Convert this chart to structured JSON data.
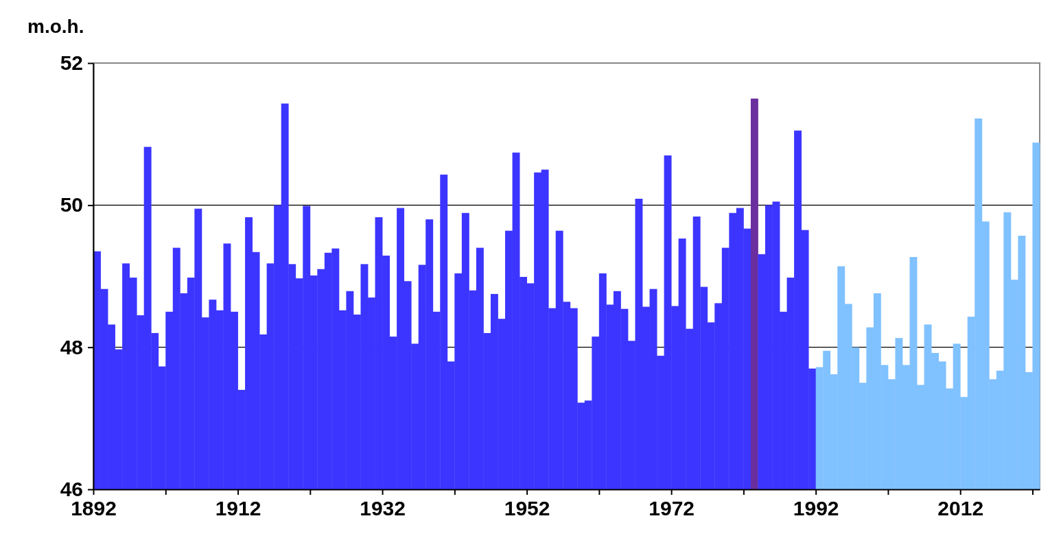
{
  "chart_data": {
    "type": "bar",
    "ylabel": "m.o.h.",
    "x": [
      1892,
      1893,
      1894,
      1895,
      1896,
      1897,
      1898,
      1899,
      1900,
      1901,
      1902,
      1903,
      1904,
      1905,
      1906,
      1907,
      1908,
      1909,
      1910,
      1911,
      1912,
      1913,
      1914,
      1915,
      1916,
      1917,
      1918,
      1919,
      1920,
      1921,
      1922,
      1923,
      1924,
      1925,
      1926,
      1927,
      1928,
      1929,
      1930,
      1931,
      1932,
      1933,
      1934,
      1935,
      1936,
      1937,
      1938,
      1939,
      1940,
      1941,
      1942,
      1943,
      1944,
      1945,
      1946,
      1947,
      1948,
      1949,
      1950,
      1951,
      1952,
      1953,
      1954,
      1955,
      1956,
      1957,
      1958,
      1959,
      1960,
      1961,
      1962,
      1963,
      1964,
      1965,
      1966,
      1967,
      1968,
      1969,
      1970,
      1971,
      1972,
      1973,
      1974,
      1975,
      1976,
      1977,
      1978,
      1979,
      1980,
      1981,
      1982,
      1983,
      1984,
      1985,
      1986,
      1987,
      1988,
      1989,
      1990,
      1991,
      1992,
      1993,
      1994,
      1995,
      1996,
      1997,
      1998,
      1999,
      2000,
      2001,
      2002,
      2003,
      2004,
      2005,
      2006,
      2007,
      2008,
      2009,
      2010,
      2011,
      2012,
      2013,
      2014,
      2015,
      2016,
      2017,
      2018,
      2019,
      2020,
      2021,
      2022
    ],
    "values": [
      49.35,
      48.82,
      48.32,
      47.97,
      49.18,
      48.98,
      48.45,
      50.82,
      48.2,
      47.73,
      48.5,
      49.4,
      48.76,
      48.98,
      49.95,
      48.42,
      48.67,
      48.52,
      49.46,
      48.5,
      47.4,
      49.83,
      49.34,
      48.18,
      49.18,
      50.0,
      51.43,
      49.17,
      48.97,
      49.99,
      49.01,
      49.1,
      49.33,
      49.39,
      48.52,
      48.79,
      48.46,
      49.17,
      48.7,
      49.83,
      49.29,
      48.15,
      49.96,
      48.93,
      48.05,
      49.16,
      49.8,
      48.5,
      50.43,
      47.8,
      49.04,
      49.89,
      48.8,
      49.4,
      48.2,
      48.75,
      48.4,
      49.64,
      50.74,
      48.99,
      48.9,
      50.46,
      50.5,
      48.55,
      49.64,
      48.64,
      48.55,
      47.22,
      47.25,
      48.15,
      49.04,
      48.6,
      48.79,
      48.54,
      48.09,
      50.09,
      48.57,
      48.82,
      47.88,
      50.7,
      48.58,
      49.53,
      48.26,
      49.84,
      48.85,
      48.35,
      48.62,
      49.4,
      49.89,
      49.96,
      49.67,
      51.5,
      49.31,
      50.0,
      50.05,
      48.5,
      48.98,
      51.05,
      49.65,
      47.7,
      47.72,
      47.95,
      47.62,
      49.14,
      48.61,
      48.0,
      47.5,
      48.28,
      48.76,
      47.75,
      47.55,
      48.13,
      47.75,
      49.27,
      47.47,
      48.32,
      47.92,
      47.8,
      47.42,
      48.05,
      47.3,
      48.43,
      51.22,
      49.77,
      47.55,
      47.67,
      49.9,
      48.95,
      49.57,
      47.65,
      50.88
    ],
    "colors": [
      "#3c35ff",
      "#3c35ff",
      "#3c35ff",
      "#3c35ff",
      "#3c35ff",
      "#3c35ff",
      "#3c35ff",
      "#3c35ff",
      "#3c35ff",
      "#3c35ff",
      "#3c35ff",
      "#3c35ff",
      "#3c35ff",
      "#3c35ff",
      "#3c35ff",
      "#3c35ff",
      "#3c35ff",
      "#3c35ff",
      "#3c35ff",
      "#3c35ff",
      "#3c35ff",
      "#3c35ff",
      "#3c35ff",
      "#3c35ff",
      "#3c35ff",
      "#3c35ff",
      "#3c35ff",
      "#3c35ff",
      "#3c35ff",
      "#3c35ff",
      "#3c35ff",
      "#3c35ff",
      "#3c35ff",
      "#3c35ff",
      "#3c35ff",
      "#3c35ff",
      "#3c35ff",
      "#3c35ff",
      "#3c35ff",
      "#3c35ff",
      "#3c35ff",
      "#3c35ff",
      "#3c35ff",
      "#3c35ff",
      "#3c35ff",
      "#3c35ff",
      "#3c35ff",
      "#3c35ff",
      "#3c35ff",
      "#3c35ff",
      "#3c35ff",
      "#3c35ff",
      "#3c35ff",
      "#3c35ff",
      "#3c35ff",
      "#3c35ff",
      "#3c35ff",
      "#3c35ff",
      "#3c35ff",
      "#3c35ff",
      "#3c35ff",
      "#3c35ff",
      "#3c35ff",
      "#3c35ff",
      "#3c35ff",
      "#3c35ff",
      "#3c35ff",
      "#3c35ff",
      "#3c35ff",
      "#3c35ff",
      "#3c35ff",
      "#3c35ff",
      "#3c35ff",
      "#3c35ff",
      "#3c35ff",
      "#3c35ff",
      "#3c35ff",
      "#3c35ff",
      "#3c35ff",
      "#3c35ff",
      "#3c35ff",
      "#3c35ff",
      "#3c35ff",
      "#3c35ff",
      "#3c35ff",
      "#3c35ff",
      "#3c35ff",
      "#3c35ff",
      "#3c35ff",
      "#3c35ff",
      "#3c35ff",
      "#6b2e9e",
      "#3c35ff",
      "#3c35ff",
      "#3c35ff",
      "#3c35ff",
      "#3c35ff",
      "#3c35ff",
      "#3c35ff",
      "#3c35ff",
      "#80c1ff",
      "#80c1ff",
      "#80c1ff",
      "#80c1ff",
      "#80c1ff",
      "#80c1ff",
      "#80c1ff",
      "#80c1ff",
      "#80c1ff",
      "#80c1ff",
      "#80c1ff",
      "#80c1ff",
      "#80c1ff",
      "#80c1ff",
      "#80c1ff",
      "#80c1ff",
      "#80c1ff",
      "#80c1ff",
      "#80c1ff",
      "#80c1ff",
      "#80c1ff",
      "#80c1ff",
      "#80c1ff",
      "#80c1ff",
      "#80c1ff",
      "#80c1ff",
      "#80c1ff",
      "#80c1ff",
      "#80c1ff",
      "#80c1ff",
      "#80c1ff"
    ],
    "xlim": [
      1892,
      2023
    ],
    "xticks": [
      1892,
      {
        "value": 1902,
        "label": null
      },
      1912,
      {
        "value": 1922,
        "label": null
      },
      1932,
      {
        "value": 1942,
        "label": null
      },
      1952,
      {
        "value": 1962,
        "label": null
      },
      1972,
      {
        "value": 1982,
        "label": null
      },
      1992,
      {
        "value": 2002,
        "label": null
      },
      2012,
      {
        "value": 2022,
        "label": null
      }
    ],
    "ylim": [
      46,
      52
    ],
    "yticks": [
      46,
      48,
      50,
      52
    ],
    "grid": "y"
  }
}
